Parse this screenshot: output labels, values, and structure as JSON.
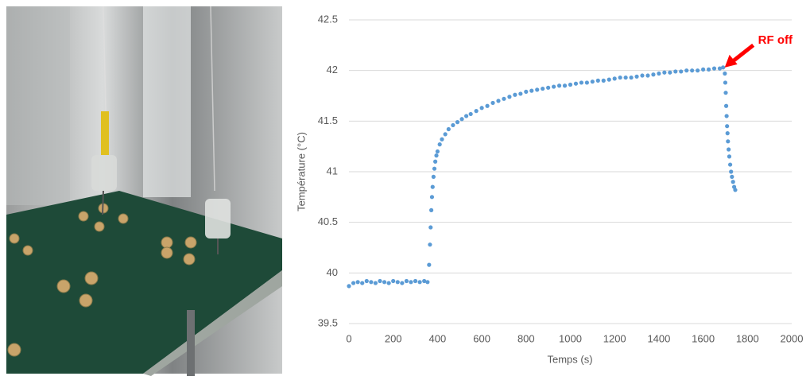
{
  "chart_data": {
    "type": "scatter",
    "x_label": "Temps (s)",
    "y_label": "Température (°C)",
    "annotation": "RF off",
    "color": "#5b9bd5",
    "annotation_color": "#ff0000",
    "grid": true,
    "xlim": [
      0,
      2000
    ],
    "xticks": [
      0,
      200,
      400,
      600,
      800,
      1000,
      1200,
      1400,
      1600,
      1800,
      2000
    ],
    "ylim": [
      39.5,
      42.5
    ],
    "yticks": [
      39.5,
      40,
      40.5,
      41,
      41.5,
      42,
      42.5
    ],
    "x": [
      0,
      20,
      40,
      60,
      80,
      100,
      120,
      140,
      160,
      180,
      200,
      220,
      240,
      260,
      280,
      300,
      320,
      340,
      355,
      362,
      366,
      369,
      372,
      375,
      378,
      382,
      386,
      390,
      395,
      400,
      410,
      420,
      435,
      450,
      470,
      490,
      510,
      530,
      550,
      575,
      600,
      625,
      650,
      675,
      700,
      725,
      750,
      775,
      800,
      825,
      850,
      875,
      900,
      925,
      950,
      975,
      1000,
      1025,
      1050,
      1075,
      1100,
      1125,
      1150,
      1175,
      1200,
      1225,
      1250,
      1275,
      1300,
      1325,
      1350,
      1375,
      1400,
      1425,
      1450,
      1475,
      1500,
      1525,
      1550,
      1575,
      1600,
      1625,
      1650,
      1675,
      1690,
      1698,
      1700,
      1702,
      1704,
      1706,
      1708,
      1710,
      1712,
      1715,
      1718,
      1722,
      1726,
      1730,
      1735,
      1740,
      1745
    ],
    "values": [
      39.87,
      39.9,
      39.91,
      39.9,
      39.92,
      39.91,
      39.9,
      39.92,
      39.91,
      39.9,
      39.92,
      39.91,
      39.9,
      39.92,
      39.91,
      39.92,
      39.91,
      39.92,
      39.91,
      40.08,
      40.28,
      40.45,
      40.62,
      40.75,
      40.85,
      40.95,
      41.03,
      41.1,
      41.16,
      41.2,
      41.27,
      41.32,
      41.37,
      41.42,
      41.46,
      41.49,
      41.52,
      41.55,
      41.57,
      41.6,
      41.63,
      41.65,
      41.68,
      41.7,
      41.72,
      41.74,
      41.76,
      41.77,
      41.79,
      41.8,
      41.81,
      41.82,
      41.83,
      41.84,
      41.85,
      41.85,
      41.86,
      41.87,
      41.88,
      41.88,
      41.89,
      41.9,
      41.9,
      41.91,
      41.92,
      41.93,
      41.93,
      41.93,
      41.94,
      41.95,
      41.95,
      41.96,
      41.97,
      41.98,
      41.98,
      41.99,
      41.99,
      42,
      42,
      42,
      42.01,
      42.01,
      42.02,
      42.02,
      42.03,
      41.97,
      41.88,
      41.78,
      41.65,
      41.55,
      41.45,
      41.38,
      41.3,
      41.22,
      41.15,
      41.07,
      41.0,
      40.95,
      40.9,
      40.85,
      40.82
    ]
  }
}
